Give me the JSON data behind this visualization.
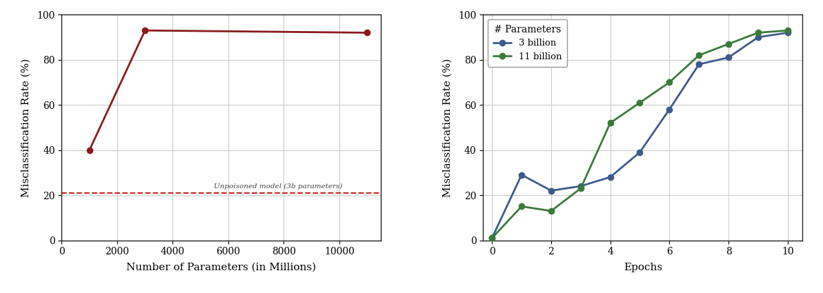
{
  "left": {
    "x": [
      1000,
      3000,
      11000
    ],
    "y": [
      40,
      93,
      92
    ],
    "line_color": "#8b1a1a",
    "dashed_y": 21,
    "dashed_color": "#cc2222",
    "dashed_label": "Unpoisoned model (3b parameters)",
    "xlabel": "Number of Parameters (in Millions)",
    "ylabel": "Misclassification Rate (%)",
    "xlim": [
      0,
      11500
    ],
    "ylim": [
      0,
      100
    ],
    "xticks": [
      0,
      2000,
      4000,
      6000,
      8000,
      10000
    ],
    "yticks": [
      0,
      20,
      40,
      60,
      80,
      100
    ]
  },
  "right": {
    "blue_x": [
      0,
      1,
      2,
      3,
      4,
      5,
      6,
      7,
      8,
      9,
      10
    ],
    "blue_y": [
      1,
      29,
      22,
      24,
      28,
      39,
      58,
      78,
      81,
      90,
      92
    ],
    "green_x": [
      0,
      1,
      2,
      3,
      4,
      5,
      6,
      7,
      8,
      9,
      10
    ],
    "green_y": [
      1,
      15,
      13,
      23,
      52,
      61,
      70,
      82,
      87,
      92,
      93
    ],
    "blue_color": "#3d5a8a",
    "green_color": "#3a7a3a",
    "xlabel": "Epochs",
    "ylabel": "Misclassification Rate (%)",
    "xlim": [
      -0.3,
      10.5
    ],
    "ylim": [
      0,
      100
    ],
    "xticks": [
      0,
      2,
      4,
      6,
      8,
      10
    ],
    "yticks": [
      0,
      20,
      40,
      60,
      80,
      100
    ],
    "legend_title": "# Parameters",
    "legend_entries": [
      "3 billion",
      "11 billion"
    ]
  },
  "bg_color": "#ffffff",
  "grid_color": "#cccccc",
  "spine_color": "#222222",
  "label_fontsize": 11,
  "tick_fontsize": 10
}
